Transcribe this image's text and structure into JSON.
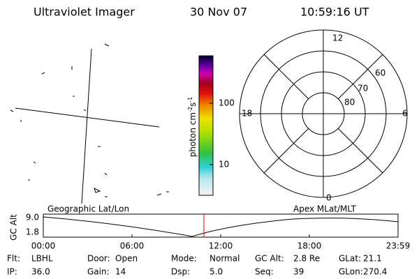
{
  "header": {
    "title": "Ultraviolet Imager",
    "date": "30 Nov 07",
    "time": "10:59:16 UT"
  },
  "colorbar": {
    "label_parts": [
      "photon cm",
      "-2",
      "s",
      "-1"
    ],
    "ticks": [
      "100",
      "10"
    ]
  },
  "polar": {
    "clock": [
      "12",
      "18",
      "6",
      "0"
    ],
    "lats": [
      "80",
      "70",
      "60"
    ]
  },
  "altplot": {
    "ylabel": "GC Alt",
    "yticks": [
      "9.0",
      "1.8"
    ],
    "left_label": "Geographic Lat/Lon",
    "right_label": "Apex MLat/MLT",
    "xticks": [
      "00:00",
      "06:00",
      "12:00",
      "18:00",
      "23:59"
    ]
  },
  "info": {
    "rows": [
      [
        [
          "Flt:",
          "LBHL"
        ],
        [
          "Door:",
          "Open"
        ],
        [
          "Mode:",
          "Normal"
        ],
        [
          "GC Alt:",
          "2.8 Re"
        ],
        [
          "GLat:",
          "21.1"
        ]
      ],
      [
        [
          "IP:",
          "36.0"
        ],
        [
          "Gain:",
          "14"
        ],
        [
          "Dsp:",
          "5.0"
        ],
        [
          "Seq:",
          "39"
        ],
        [
          "GLon:",
          "270.4"
        ]
      ]
    ]
  }
}
